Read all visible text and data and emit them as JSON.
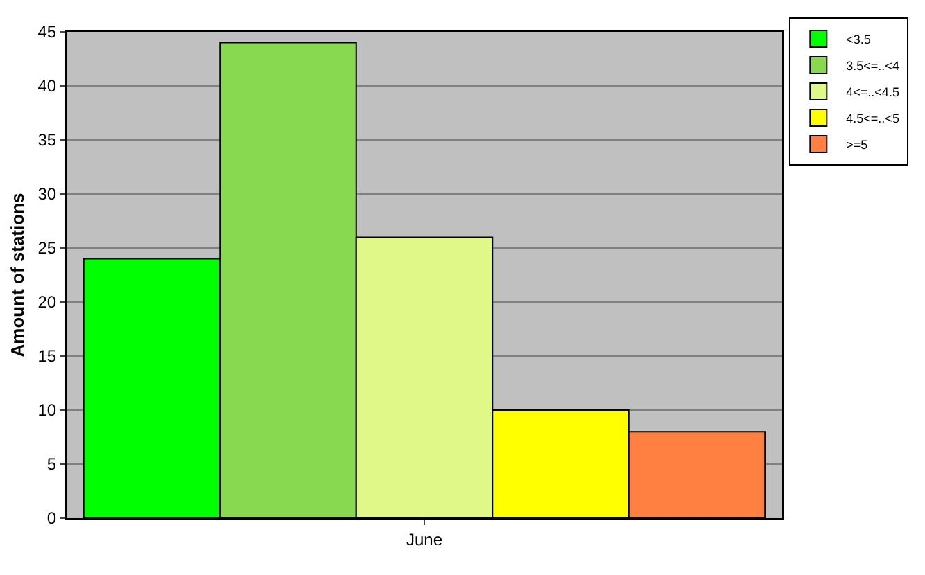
{
  "chart_data": {
    "type": "bar",
    "ylabel": "Amount of stations",
    "categories": [
      "June"
    ],
    "series": [
      {
        "name": "<3.5",
        "color": "#00ff00",
        "values": [
          24
        ]
      },
      {
        "name": "3.5<=..<4",
        "color": "#88d850",
        "values": [
          44
        ]
      },
      {
        "name": "4<=..<4.5",
        "color": "#e0f888",
        "values": [
          26
        ]
      },
      {
        "name": "4.5<=..<5",
        "color": "#ffff00",
        "values": [
          10
        ]
      },
      {
        "name": ">=5",
        "color": "#ff8040",
        "values": [
          8
        ]
      }
    ],
    "ylim": [
      0,
      45
    ],
    "yticks": [
      0,
      5,
      10,
      15,
      20,
      25,
      30,
      35,
      40,
      45
    ],
    "grid": "y",
    "legend": "top right"
  }
}
